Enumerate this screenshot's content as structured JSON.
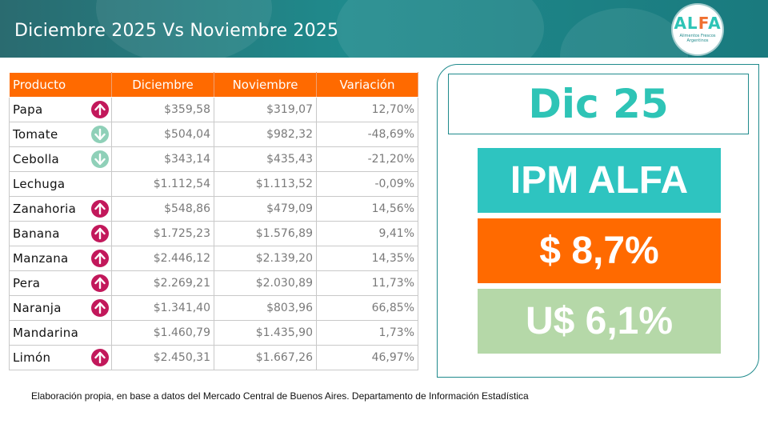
{
  "header": {
    "title": "Diciembre 2025 Vs Noviembre 2025",
    "logo": {
      "word_a": "ALFA",
      "subtitle_line1": "Alimentos Frescos",
      "subtitle_line2": "Argentinos"
    }
  },
  "table": {
    "columns": [
      "Producto",
      "Diciembre",
      "Noviembre",
      "Variación"
    ],
    "rows": [
      {
        "product": "Papa",
        "dic": "$359,58",
        "nov": "$319,07",
        "var": "12,70%",
        "trend": "up"
      },
      {
        "product": "Tomate",
        "dic": "$504,04",
        "nov": "$982,32",
        "var": "-48,69%",
        "trend": "down"
      },
      {
        "product": "Cebolla",
        "dic": "$343,14",
        "nov": "$435,43",
        "var": "-21,20%",
        "trend": "down"
      },
      {
        "product": "Lechuga",
        "dic": "$1.112,54",
        "nov": "$1.113,52",
        "var": "-0,09%",
        "trend": "none"
      },
      {
        "product": "Zanahoria",
        "dic": "$548,86",
        "nov": "$479,09",
        "var": "14,56%",
        "trend": "up"
      },
      {
        "product": "Banana",
        "dic": "$1.725,23",
        "nov": "$1.576,89",
        "var": "9,41%",
        "trend": "up"
      },
      {
        "product": "Manzana",
        "dic": "$2.446,12",
        "nov": "$2.139,20",
        "var": "14,35%",
        "trend": "up"
      },
      {
        "product": "Pera",
        "dic": "$2.269,21",
        "nov": "$2.030,89",
        "var": "11,73%",
        "trend": "up"
      },
      {
        "product": "Naranja",
        "dic": "$1.341,40",
        "nov": "$803,96",
        "var": "66,85%",
        "trend": "up"
      },
      {
        "product": "Mandarina",
        "dic": "$1.460,79",
        "nov": "$1.435,90",
        "var": "1,73%",
        "trend": "none"
      },
      {
        "product": "Limón",
        "dic": "$2.450,31",
        "nov": "$1.667,26",
        "var": "46,97%",
        "trend": "up"
      }
    ]
  },
  "summary": {
    "period": "Dic 25",
    "index_name": "IPM ALFA",
    "pesos": "$ 8,7%",
    "usd": "U$ 6,1%"
  },
  "colors": {
    "header_teal": "#1f8a8c",
    "accent_orange": "#ff6a00",
    "accent_teal": "#2ec4c0",
    "accent_green": "#b5d8a8",
    "up_arrow": "#c2185b",
    "down_arrow": "#8fd0b8"
  },
  "icons": {
    "up": "arrow-up-circle-icon",
    "down": "arrow-down-circle-icon"
  },
  "footnote": "Elaboración propia, en base a datos del Mercado Central de Buenos Aires. Departamento de Información Estadística"
}
